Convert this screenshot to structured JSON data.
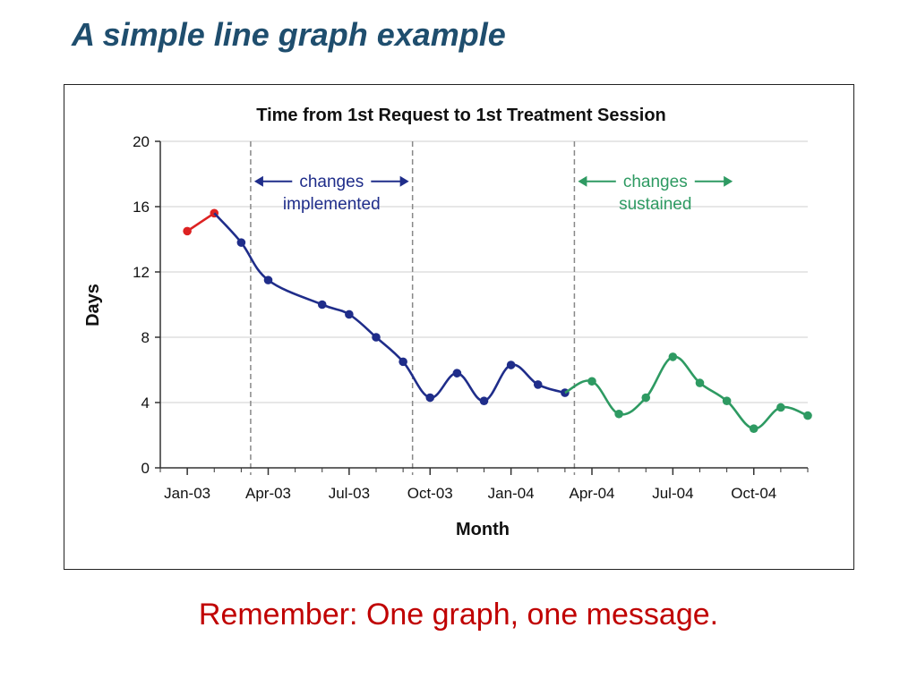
{
  "slide": {
    "title": "A simple line graph example",
    "footer": "Remember: One graph, one message."
  },
  "colors": {
    "title": "#1f4e6e",
    "footer": "#c00000",
    "baseline": "#dd2222",
    "implemented": "#1f2d8a",
    "sustained": "#2e9a62",
    "grid": "#cfcfcf",
    "phase_line": "#888888"
  },
  "chart_data": {
    "type": "line",
    "title": "Time from 1st Request to 1st Treatment Session",
    "xlabel": "Month",
    "ylabel": "Days",
    "ylim": [
      0,
      20
    ],
    "yticks": [
      0,
      4,
      8,
      12,
      16,
      20
    ],
    "xlim": [
      "2002-12",
      "2004-12"
    ],
    "xticks": [
      {
        "label": "Jan-03",
        "month": "2003-01"
      },
      {
        "label": "Apr-03",
        "month": "2003-04"
      },
      {
        "label": "Jul-03",
        "month": "2003-07"
      },
      {
        "label": "Oct-03",
        "month": "2003-10"
      },
      {
        "label": "Jan-04",
        "month": "2004-01"
      },
      {
        "label": "Apr-04",
        "month": "2004-04"
      },
      {
        "label": "Jul-04",
        "month": "2004-07"
      },
      {
        "label": "Oct-04",
        "month": "2004-10"
      }
    ],
    "grid": true,
    "phase_lines": [
      "2003-03",
      "2003-09",
      "2004-03"
    ],
    "series": [
      {
        "color_key": "baseline",
        "points": [
          {
            "month": "2003-01",
            "value": 14.5
          },
          {
            "month": "2003-02",
            "value": 15.6
          }
        ]
      },
      {
        "color_key": "implemented",
        "points": [
          {
            "month": "2003-02",
            "value": 15.6
          },
          {
            "month": "2003-03",
            "value": 13.8
          },
          {
            "month": "2003-04",
            "value": 11.5
          },
          {
            "month": "2003-06",
            "value": 10.0
          },
          {
            "month": "2003-07",
            "value": 9.4
          },
          {
            "month": "2003-08",
            "value": 8.0
          },
          {
            "month": "2003-09",
            "value": 6.5
          },
          {
            "month": "2003-10",
            "value": 4.3
          },
          {
            "month": "2003-11",
            "value": 5.8
          },
          {
            "month": "2003-12",
            "value": 4.1
          },
          {
            "month": "2004-01",
            "value": 6.3
          },
          {
            "month": "2004-02",
            "value": 5.1
          },
          {
            "month": "2004-03",
            "value": 4.6
          }
        ]
      },
      {
        "color_key": "sustained",
        "points": [
          {
            "month": "2004-03",
            "value": 4.6
          },
          {
            "month": "2004-04",
            "value": 5.3
          },
          {
            "month": "2004-05",
            "value": 3.3
          },
          {
            "month": "2004-06",
            "value": 4.3
          },
          {
            "month": "2004-07",
            "value": 6.8
          },
          {
            "month": "2004-08",
            "value": 5.2
          },
          {
            "month": "2004-09",
            "value": 4.1
          },
          {
            "month": "2004-10",
            "value": 2.4
          },
          {
            "month": "2004-11",
            "value": 3.7
          },
          {
            "month": "2004-12",
            "value": 3.2
          }
        ]
      }
    ],
    "annotations": [
      {
        "lines": [
          "changes",
          "implemented"
        ],
        "color_key": "implemented",
        "from": "2003-03",
        "to": "2003-09",
        "y": 17.0
      },
      {
        "lines": [
          "changes",
          "sustained"
        ],
        "color_key": "sustained",
        "from": "2004-03",
        "to": "2004-09",
        "y": 17.0
      }
    ]
  }
}
